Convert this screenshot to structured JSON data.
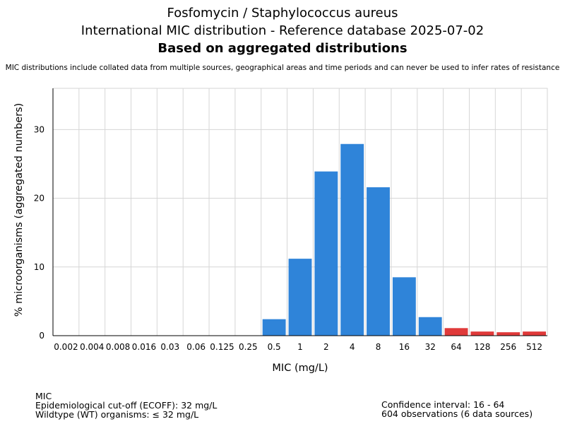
{
  "header": {
    "title_line1": "Fosfomycin / Staphylococcus aureus",
    "title_line2": "International MIC distribution - Reference database 2025-07-02",
    "title_line3": "Based on aggregated distributions",
    "disclaimer": "MIC distributions include collated data from multiple sources, geographical areas and time periods and can never be used to infer rates of resistance"
  },
  "chart_data": {
    "type": "bar",
    "xlabel": "MIC (mg/L)",
    "ylabel": "% microorganisms (aggregated numbers)",
    "categories": [
      "0.002",
      "0.004",
      "0.008",
      "0.016",
      "0.03",
      "0.06",
      "0.125",
      "0.25",
      "0.5",
      "1",
      "2",
      "4",
      "8",
      "16",
      "32",
      "64",
      "128",
      "256",
      "512"
    ],
    "values": [
      0,
      0,
      0,
      0,
      0,
      0,
      0,
      0,
      2.4,
      11.2,
      23.9,
      27.9,
      21.6,
      8.5,
      2.7,
      1.1,
      0.6,
      0.5,
      0.6
    ],
    "ylim": [
      0,
      36
    ],
    "yticks": [
      0,
      10,
      20,
      30
    ],
    "grid": true,
    "ecoff": "32",
    "colors": {
      "wildtype": "#2f84d9",
      "non_wildtype": "#e03a3a",
      "grid": "#d6d6d6"
    }
  },
  "footer": {
    "left": [
      "MIC",
      "Epidemiological cut-off (ECOFF): 32 mg/L",
      "Wildtype (WT) organisms: ≤ 32 mg/L"
    ],
    "right": [
      "Confidence interval: 16 - 64",
      "604 observations (6 data sources)"
    ]
  }
}
